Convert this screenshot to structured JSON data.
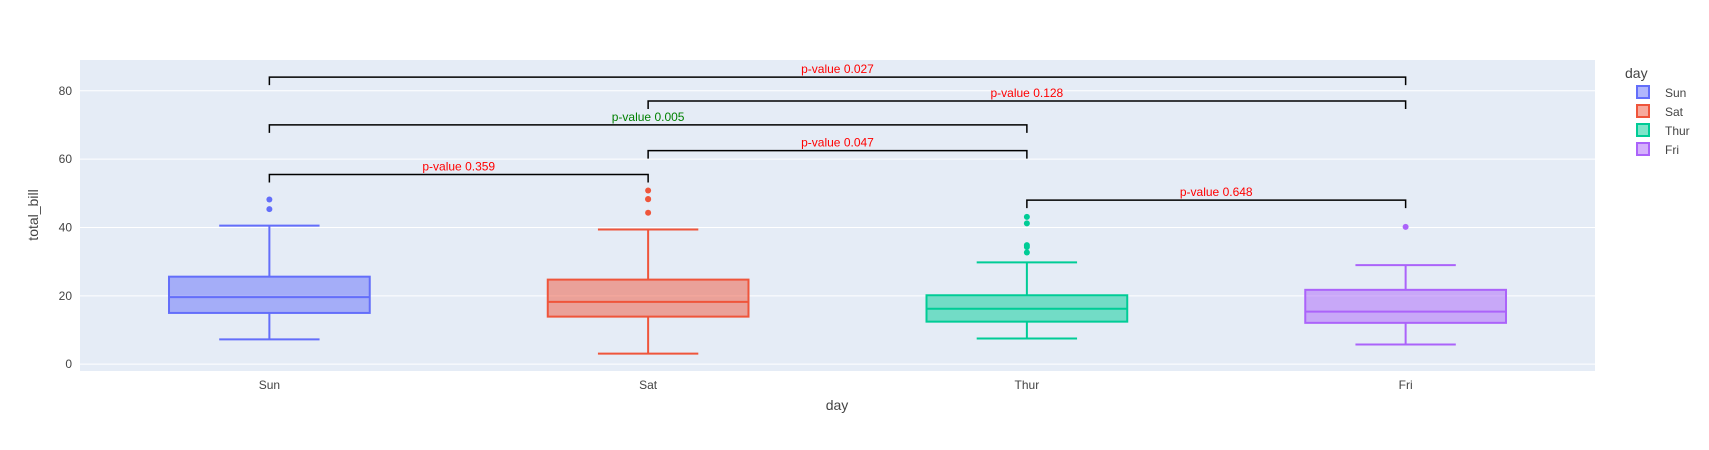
{
  "chart_data": {
    "type": "box",
    "xlabel": "day",
    "ylabel": "total_bill",
    "ylim": [
      -2,
      89
    ],
    "yticks": [
      0,
      20,
      40,
      60,
      80
    ],
    "categories": [
      "Sun",
      "Sat",
      "Thur",
      "Fri"
    ],
    "grid": true,
    "legend": {
      "title": "day",
      "placement": "right"
    },
    "series": [
      {
        "name": "Sun",
        "color": "#636efa",
        "fill": "rgba(99,110,250,0.5)",
        "min": 7.25,
        "q1": 14.99,
        "median": 19.63,
        "q3": 25.6,
        "max": 40.55,
        "outliers": [
          45.35,
          48.17
        ]
      },
      {
        "name": "Sat",
        "color": "#ef553b",
        "fill": "rgba(239,85,59,0.5)",
        "min": 3.07,
        "q1": 13.91,
        "median": 18.24,
        "q3": 24.74,
        "max": 39.42,
        "outliers": [
          44.3,
          48.27,
          48.33,
          50.81
        ]
      },
      {
        "name": "Thur",
        "color": "#00cc96",
        "fill": "rgba(0,204,150,0.5)",
        "min": 7.51,
        "q1": 12.44,
        "median": 16.2,
        "q3": 20.16,
        "max": 29.8,
        "outliers": [
          32.68,
          34.3,
          34.83,
          41.19,
          43.11
        ]
      },
      {
        "name": "Fri",
        "color": "#ab63fa",
        "fill": "rgba(171,99,250,0.5)",
        "min": 5.75,
        "q1": 12.09,
        "median": 15.38,
        "q3": 21.75,
        "max": 28.97,
        "outliers": [
          40.17
        ]
      }
    ],
    "annotations": [
      {
        "from": "Sun",
        "to": "Fri",
        "y": 84,
        "text": "p-value 0.027",
        "color": "#ff0000"
      },
      {
        "from": "Sat",
        "to": "Fri",
        "y": 77,
        "text": "p-value 0.128",
        "color": "#ff0000"
      },
      {
        "from": "Sun",
        "to": "Thur",
        "y": 70,
        "text": "p-value 0.005",
        "color": "#008000"
      },
      {
        "from": "Sat",
        "to": "Thur",
        "y": 62.5,
        "text": "p-value 0.047",
        "color": "#ff0000"
      },
      {
        "from": "Sun",
        "to": "Sat",
        "y": 55.5,
        "text": "p-value 0.359",
        "color": "#ff0000"
      },
      {
        "from": "Thur",
        "to": "Fri",
        "y": 48,
        "text": "p-value 0.648",
        "color": "#ff0000"
      }
    ]
  }
}
